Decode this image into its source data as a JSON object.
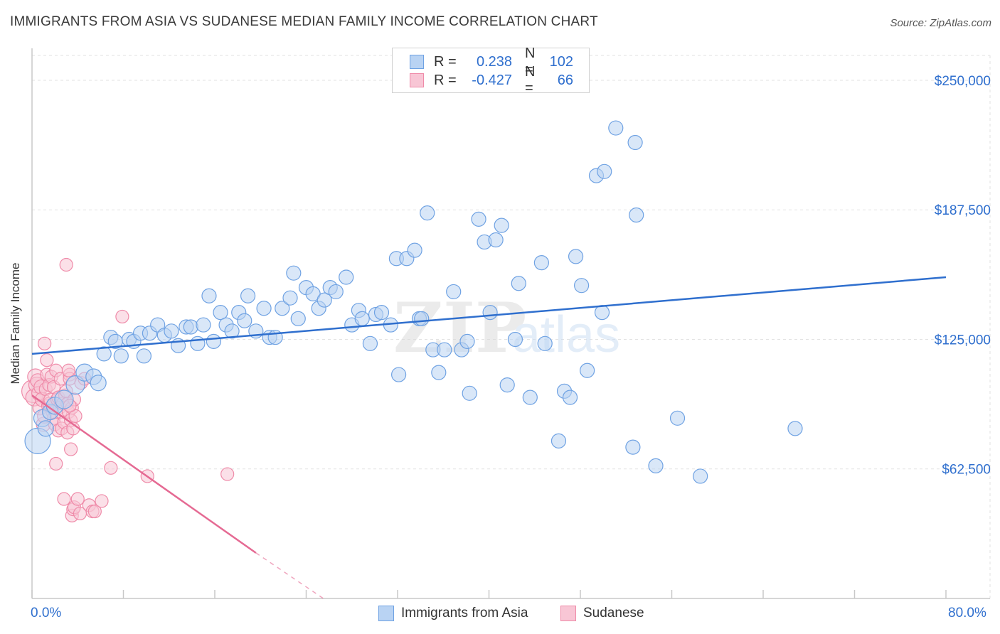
{
  "title": "IMMIGRANTS FROM ASIA VS SUDANESE MEDIAN FAMILY INCOME CORRELATION CHART",
  "source": "Source: ZipAtlas.com",
  "watermark": {
    "zip": "ZIP",
    "atlas": "atlas"
  },
  "legend": {
    "r_label": "R =",
    "n_label": "N =",
    "series": [
      {
        "name": "Immigrants from Asia",
        "r": "0.238",
        "n": "102",
        "color": "#6fa2e3",
        "fill": "#b9d3f3"
      },
      {
        "name": "Sudanese",
        "r": "-0.427",
        "n": "66",
        "color": "#ef8ba9",
        "fill": "#f8c6d5"
      }
    ]
  },
  "colors": {
    "value_text": "#2f6fce",
    "blue_line": "#2f6fce",
    "pink_line": "#e56a93"
  },
  "chart_data": {
    "type": "scatter",
    "title": "IMMIGRANTS FROM ASIA VS SUDANESE MEDIAN FAMILY INCOME CORRELATION CHART",
    "xlabel": "",
    "ylabel": "Median Family Income",
    "xlim": [
      0,
      80
    ],
    "ylim": [
      0,
      262000
    ],
    "x_tick_labels": [
      "0.0%",
      "80.0%"
    ],
    "y_ticks": [
      {
        "value": 62500,
        "label": "$62,500"
      },
      {
        "value": 125000,
        "label": "$125,000"
      },
      {
        "value": 187500,
        "label": "$187,500"
      },
      {
        "value": 250000,
        "label": "$250,000"
      }
    ],
    "grid": true,
    "series": [
      {
        "name": "Immigrants from Asia",
        "points": [
          [
            0.5,
            76000,
            18
          ],
          [
            0.9,
            87000,
            12
          ],
          [
            1.2,
            82000,
            11
          ],
          [
            1.6,
            90000,
            11
          ],
          [
            2.0,
            93000,
            12
          ],
          [
            2.8,
            96000,
            13
          ],
          [
            3.8,
            103000,
            13
          ],
          [
            4.6,
            109000,
            12
          ],
          [
            5.4,
            107000,
            11
          ],
          [
            5.8,
            104000,
            11
          ],
          [
            6.3,
            118000,
            10
          ],
          [
            6.9,
            126000,
            10
          ],
          [
            7.3,
            124000,
            10
          ],
          [
            7.8,
            117000,
            10
          ],
          [
            8.5,
            125000,
            10
          ],
          [
            8.9,
            124000,
            10
          ],
          [
            9.5,
            128000,
            10
          ],
          [
            9.8,
            117000,
            10
          ],
          [
            10.3,
            128000,
            10
          ],
          [
            11.0,
            132000,
            10
          ],
          [
            11.6,
            127000,
            10
          ],
          [
            12.2,
            129000,
            10
          ],
          [
            12.8,
            122000,
            10
          ],
          [
            13.5,
            131000,
            10
          ],
          [
            13.9,
            131000,
            10
          ],
          [
            14.5,
            123000,
            10
          ],
          [
            15.0,
            132000,
            10
          ],
          [
            15.5,
            146000,
            10
          ],
          [
            15.9,
            124000,
            10
          ],
          [
            16.5,
            138000,
            10
          ],
          [
            17.0,
            132000,
            10
          ],
          [
            17.5,
            129000,
            10
          ],
          [
            18.1,
            138000,
            10
          ],
          [
            18.6,
            134000,
            10
          ],
          [
            18.9,
            146000,
            10
          ],
          [
            19.6,
            129000,
            10
          ],
          [
            20.3,
            140000,
            10
          ],
          [
            20.8,
            126000,
            10
          ],
          [
            21.3,
            126000,
            10
          ],
          [
            21.9,
            140000,
            10
          ],
          [
            22.6,
            145000,
            10
          ],
          [
            22.9,
            157000,
            10
          ],
          [
            23.3,
            135000,
            10
          ],
          [
            24.0,
            150000,
            10
          ],
          [
            24.6,
            147000,
            10
          ],
          [
            25.1,
            140000,
            10
          ],
          [
            25.6,
            144000,
            10
          ],
          [
            26.1,
            150000,
            10
          ],
          [
            26.6,
            148000,
            10
          ],
          [
            27.5,
            155000,
            10
          ],
          [
            28.0,
            132000,
            10
          ],
          [
            28.6,
            139000,
            10
          ],
          [
            28.9,
            135000,
            10
          ],
          [
            29.6,
            123000,
            10
          ],
          [
            30.1,
            137000,
            10
          ],
          [
            30.6,
            138000,
            10
          ],
          [
            31.4,
            132000,
            10
          ],
          [
            31.9,
            164000,
            10
          ],
          [
            32.1,
            108000,
            10
          ],
          [
            32.8,
            164000,
            10
          ],
          [
            33.5,
            168000,
            10
          ],
          [
            33.9,
            135000,
            10
          ],
          [
            34.1,
            135000,
            10
          ],
          [
            34.6,
            186000,
            10
          ],
          [
            35.1,
            120000,
            10
          ],
          [
            35.6,
            109000,
            10
          ],
          [
            36.1,
            120000,
            10
          ],
          [
            36.9,
            148000,
            10
          ],
          [
            37.6,
            120000,
            10
          ],
          [
            38.1,
            124000,
            10
          ],
          [
            38.3,
            99000,
            10
          ],
          [
            39.1,
            183000,
            10
          ],
          [
            39.6,
            172000,
            10
          ],
          [
            40.1,
            138000,
            10
          ],
          [
            40.6,
            173000,
            10
          ],
          [
            41.1,
            180000,
            10
          ],
          [
            41.6,
            103000,
            10
          ],
          [
            42.3,
            125000,
            10
          ],
          [
            42.6,
            152000,
            10
          ],
          [
            43.6,
            97000,
            10
          ],
          [
            44.6,
            162000,
            10
          ],
          [
            44.9,
            123000,
            10
          ],
          [
            46.1,
            76000,
            10
          ],
          [
            46.6,
            100000,
            10
          ],
          [
            47.1,
            97000,
            10
          ],
          [
            47.6,
            165000,
            10
          ],
          [
            48.1,
            151000,
            10
          ],
          [
            48.6,
            110000,
            10
          ],
          [
            49.4,
            204000,
            10
          ],
          [
            49.9,
            138000,
            10
          ],
          [
            50.1,
            206000,
            10
          ],
          [
            51.1,
            227000,
            10
          ],
          [
            52.8,
            220000,
            10
          ],
          [
            52.6,
            73000,
            10
          ],
          [
            52.9,
            185000,
            10
          ],
          [
            54.6,
            64000,
            10
          ],
          [
            56.5,
            87000,
            10
          ],
          [
            58.5,
            59000,
            10
          ],
          [
            66.8,
            82000,
            10
          ]
        ]
      },
      {
        "name": "Sudanese",
        "points": [
          [
            0.1,
            100000,
            16
          ],
          [
            0.2,
            97000,
            12
          ],
          [
            0.3,
            107000,
            11
          ],
          [
            0.4,
            103000,
            11
          ],
          [
            0.5,
            105000,
            10
          ],
          [
            0.6,
            99000,
            10
          ],
          [
            0.7,
            92000,
            10
          ],
          [
            0.8,
            102000,
            10
          ],
          [
            0.9,
            96000,
            10
          ],
          [
            1.0,
            84000,
            10
          ],
          [
            1.1,
            88000,
            10
          ],
          [
            1.1,
            123000,
            9
          ],
          [
            1.2,
            101000,
            9
          ],
          [
            1.3,
            108000,
            9
          ],
          [
            1.3,
            115000,
            9
          ],
          [
            1.4,
            93000,
            9
          ],
          [
            1.5,
            94000,
            9
          ],
          [
            1.5,
            103000,
            9
          ],
          [
            1.6,
            96000,
            9
          ],
          [
            1.7,
            107000,
            9
          ],
          [
            1.8,
            90000,
            9
          ],
          [
            1.9,
            102000,
            9
          ],
          [
            1.9,
            87000,
            9
          ],
          [
            2.0,
            84000,
            9
          ],
          [
            2.1,
            110000,
            9
          ],
          [
            2.2,
            96000,
            9
          ],
          [
            2.3,
            97000,
            9
          ],
          [
            2.3,
            81000,
            9
          ],
          [
            2.4,
            92000,
            9
          ],
          [
            2.5,
            90000,
            9
          ],
          [
            2.5,
            106000,
            9
          ],
          [
            2.6,
            82000,
            9
          ],
          [
            2.7,
            94000,
            9
          ],
          [
            2.8,
            85000,
            9
          ],
          [
            2.9,
            98000,
            9
          ],
          [
            3.0,
            100000,
            9
          ],
          [
            3.1,
            94000,
            9
          ],
          [
            3.1,
            80000,
            9
          ],
          [
            3.2,
            90000,
            9
          ],
          [
            3.3,
            108000,
            9
          ],
          [
            3.3,
            106000,
            9
          ],
          [
            3.4,
            86000,
            9
          ],
          [
            3.5,
            92000,
            9
          ],
          [
            3.6,
            82000,
            9
          ],
          [
            3.7,
            96000,
            9
          ],
          [
            3.8,
            88000,
            9
          ],
          [
            2.1,
            65000,
            9
          ],
          [
            2.8,
            48000,
            9
          ],
          [
            3.0,
            161000,
            9
          ],
          [
            3.2,
            110000,
            9
          ],
          [
            3.3,
            93000,
            9
          ],
          [
            3.4,
            72000,
            9
          ],
          [
            3.5,
            40000,
            9
          ],
          [
            3.6,
            43000,
            9
          ],
          [
            3.7,
            44000,
            9
          ],
          [
            4.0,
            48000,
            9
          ],
          [
            4.2,
            41000,
            9
          ],
          [
            4.3,
            104000,
            9
          ],
          [
            4.6,
            106000,
            9
          ],
          [
            5.0,
            45000,
            9
          ],
          [
            5.3,
            42000,
            9
          ],
          [
            5.5,
            42000,
            9
          ],
          [
            6.1,
            47000,
            9
          ],
          [
            6.9,
            63000,
            9
          ],
          [
            7.9,
            136000,
            9
          ],
          [
            10.1,
            59000,
            9
          ],
          [
            17.1,
            60000,
            9
          ]
        ]
      }
    ],
    "trend_lines": [
      {
        "series": "Immigrants from Asia",
        "x": [
          0,
          80
        ],
        "y": [
          118000,
          155000
        ]
      },
      {
        "series": "Sudanese",
        "x": [
          0,
          19.6
        ],
        "y": [
          98000,
          22000
        ],
        "dashed_extension_to": [
          25.5,
          0
        ]
      }
    ]
  }
}
